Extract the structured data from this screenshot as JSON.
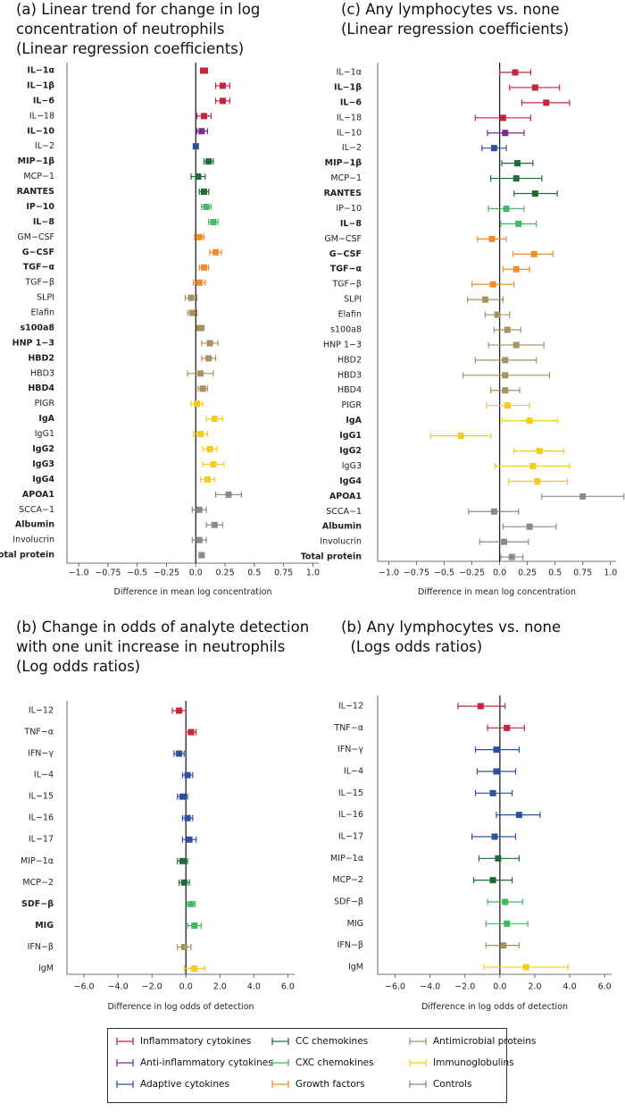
{
  "colors": {
    "inflammatory": "#c8223e",
    "anti_inflammatory": "#7b2d8e",
    "adaptive": "#2f4fa0",
    "cc": "#1f6b3a",
    "cxc": "#3dbb5e",
    "growth": "#f28c28",
    "antimicrobial": "#a89060",
    "immunoglobulin": "#f5cc1a",
    "controls": "#8a8a8a"
  },
  "legend": [
    {
      "label": "Inflammatory cytokines",
      "group": "inflammatory"
    },
    {
      "label": "CC chemokines",
      "group": "cc"
    },
    {
      "label": "Antimicrobial proteins",
      "group": "antimicrobial"
    },
    {
      "label": "Anti-inflammatory cytokines",
      "group": "anti_inflammatory"
    },
    {
      "label": "CXC chemokines",
      "group": "cxc"
    },
    {
      "label": "Immunoglobulins",
      "group": "immunoglobulin"
    },
    {
      "label": "Adaptive cytokines",
      "group": "adaptive"
    },
    {
      "label": "Growth factors",
      "group": "growth"
    },
    {
      "label": "Controls",
      "group": "controls"
    }
  ],
  "chart_data": [
    {
      "id": "a",
      "type": "forest",
      "title_lines": [
        "(a) Linear trend for change in log",
        "concentration of neutrophils",
        "(Linear regression coefficients)"
      ],
      "xlabel": "Difference in mean log concentration",
      "xlim": [
        -1.1,
        1.05
      ],
      "ticks": [
        -1.0,
        -0.75,
        -0.5,
        -0.25,
        0.0,
        0.25,
        0.5,
        0.75,
        1.0
      ],
      "tick_labels": [
        "−1.0",
        "−0.75",
        "−0.5",
        "−0.25",
        "0.0",
        "0.25",
        "0.5",
        "0.75",
        "1.0"
      ],
      "rows": [
        {
          "label": "IL−1α",
          "bold": true,
          "group": "inflammatory",
          "est": 0.07,
          "lo": 0.04,
          "hi": 0.1
        },
        {
          "label": "IL−1β",
          "bold": true,
          "group": "inflammatory",
          "est": 0.23,
          "lo": 0.17,
          "hi": 0.29
        },
        {
          "label": "IL−6",
          "bold": true,
          "group": "inflammatory",
          "est": 0.23,
          "lo": 0.17,
          "hi": 0.29
        },
        {
          "label": "IL−18",
          "bold": false,
          "group": "inflammatory",
          "est": 0.07,
          "lo": 0.01,
          "hi": 0.13
        },
        {
          "label": "IL−10",
          "bold": true,
          "group": "anti_inflammatory",
          "est": 0.05,
          "lo": 0.01,
          "hi": 0.1
        },
        {
          "label": "IL−2",
          "bold": false,
          "group": "adaptive",
          "est": 0.0,
          "lo": -0.02,
          "hi": 0.02
        },
        {
          "label": "MIP−1β",
          "bold": true,
          "group": "cc",
          "est": 0.11,
          "lo": 0.07,
          "hi": 0.15
        },
        {
          "label": "MCP−1",
          "bold": false,
          "group": "cc",
          "est": 0.02,
          "lo": -0.04,
          "hi": 0.08
        },
        {
          "label": "RANTES",
          "bold": true,
          "group": "cc",
          "est": 0.07,
          "lo": 0.03,
          "hi": 0.11
        },
        {
          "label": "IP−10",
          "bold": true,
          "group": "cxc",
          "est": 0.09,
          "lo": 0.05,
          "hi": 0.13
        },
        {
          "label": "IL−8",
          "bold": true,
          "group": "cxc",
          "est": 0.15,
          "lo": 0.11,
          "hi": 0.19
        },
        {
          "label": "GM−CSF",
          "bold": false,
          "group": "growth",
          "est": 0.03,
          "lo": -0.01,
          "hi": 0.07
        },
        {
          "label": "G−CSF",
          "bold": true,
          "group": "growth",
          "est": 0.17,
          "lo": 0.12,
          "hi": 0.22
        },
        {
          "label": "TGF−α",
          "bold": true,
          "group": "growth",
          "est": 0.07,
          "lo": 0.03,
          "hi": 0.11
        },
        {
          "label": "TGF−β",
          "bold": false,
          "group": "growth",
          "est": 0.03,
          "lo": -0.02,
          "hi": 0.08
        },
        {
          "label": "SLPI",
          "bold": false,
          "group": "antimicrobial",
          "est": -0.04,
          "lo": -0.09,
          "hi": 0.01
        },
        {
          "label": "Elafin",
          "bold": false,
          "group": "antimicrobial",
          "est": -0.03,
          "lo": -0.07,
          "hi": 0.01
        },
        {
          "label": "s100a8",
          "bold": true,
          "group": "antimicrobial",
          "est": 0.04,
          "lo": 0.01,
          "hi": 0.07
        },
        {
          "label": "HNP 1−3",
          "bold": true,
          "group": "antimicrobial",
          "est": 0.12,
          "lo": 0.05,
          "hi": 0.19
        },
        {
          "label": "HBD2",
          "bold": true,
          "group": "antimicrobial",
          "est": 0.11,
          "lo": 0.05,
          "hi": 0.17
        },
        {
          "label": "HBD3",
          "bold": false,
          "group": "antimicrobial",
          "est": 0.04,
          "lo": -0.07,
          "hi": 0.15
        },
        {
          "label": "HBD4",
          "bold": true,
          "group": "antimicrobial",
          "est": 0.06,
          "lo": 0.02,
          "hi": 0.1
        },
        {
          "label": "PIGR",
          "bold": false,
          "group": "immunoglobulin",
          "est": 0.01,
          "lo": -0.04,
          "hi": 0.06
        },
        {
          "label": "IgA",
          "bold": true,
          "group": "immunoglobulin",
          "est": 0.16,
          "lo": 0.09,
          "hi": 0.23
        },
        {
          "label": "IgG1",
          "bold": false,
          "group": "immunoglobulin",
          "est": 0.04,
          "lo": -0.02,
          "hi": 0.1
        },
        {
          "label": "IgG2",
          "bold": true,
          "group": "immunoglobulin",
          "est": 0.12,
          "lo": 0.06,
          "hi": 0.18
        },
        {
          "label": "IgG3",
          "bold": true,
          "group": "immunoglobulin",
          "est": 0.15,
          "lo": 0.06,
          "hi": 0.24
        },
        {
          "label": "IgG4",
          "bold": true,
          "group": "immunoglobulin",
          "est": 0.1,
          "lo": 0.04,
          "hi": 0.16
        },
        {
          "label": "APOA1",
          "bold": true,
          "group": "controls",
          "est": 0.28,
          "lo": 0.17,
          "hi": 0.39
        },
        {
          "label": "SCCA−1",
          "bold": false,
          "group": "controls",
          "est": 0.03,
          "lo": -0.03,
          "hi": 0.09
        },
        {
          "label": "Albumin",
          "bold": true,
          "group": "controls",
          "est": 0.16,
          "lo": 0.09,
          "hi": 0.23
        },
        {
          "label": "Involucrin",
          "bold": false,
          "group": "controls",
          "est": 0.03,
          "lo": -0.03,
          "hi": 0.09
        },
        {
          "label": "Total protein",
          "bold": true,
          "group": "controls",
          "est": 0.05,
          "lo": 0.03,
          "hi": 0.07
        }
      ]
    },
    {
      "id": "c",
      "type": "forest",
      "title_lines": [
        "(c) Any lymphocytes vs. none",
        "(Linear regression coefficients)"
      ],
      "xlabel": "Difference in mean log concentration",
      "xlim": [
        -1.1,
        1.05
      ],
      "ticks": [
        -1.0,
        -0.75,
        -0.5,
        -0.25,
        0.0,
        0.25,
        0.5,
        0.75,
        1.0
      ],
      "tick_labels": [
        "−1.0",
        "−0.75",
        "−0.5",
        "−0.25",
        "0.0",
        "0.25",
        "0.5",
        "0.75",
        "1.0"
      ],
      "rows": [
        {
          "label": "IL−1α",
          "bold": false,
          "group": "inflammatory",
          "est": 0.14,
          "lo": 0.0,
          "hi": 0.28
        },
        {
          "label": "IL−1β",
          "bold": true,
          "group": "inflammatory",
          "est": 0.32,
          "lo": 0.09,
          "hi": 0.54
        },
        {
          "label": "IL−6",
          "bold": true,
          "group": "inflammatory",
          "est": 0.42,
          "lo": 0.2,
          "hi": 0.63
        },
        {
          "label": "IL−18",
          "bold": false,
          "group": "inflammatory",
          "est": 0.03,
          "lo": -0.22,
          "hi": 0.28
        },
        {
          "label": "IL−10",
          "bold": false,
          "group": "anti_inflammatory",
          "est": 0.05,
          "lo": -0.11,
          "hi": 0.22
        },
        {
          "label": "IL−2",
          "bold": false,
          "group": "adaptive",
          "est": -0.05,
          "lo": -0.16,
          "hi": 0.06
        },
        {
          "label": "MIP−1β",
          "bold": true,
          "group": "cc",
          "est": 0.16,
          "lo": 0.02,
          "hi": 0.3
        },
        {
          "label": "MCP−1",
          "bold": false,
          "group": "cc",
          "est": 0.15,
          "lo": -0.08,
          "hi": 0.38
        },
        {
          "label": "RANTES",
          "bold": true,
          "group": "cc",
          "est": 0.32,
          "lo": 0.13,
          "hi": 0.52
        },
        {
          "label": "IP−10",
          "bold": false,
          "group": "cxc",
          "est": 0.06,
          "lo": -0.1,
          "hi": 0.22
        },
        {
          "label": "IL−8",
          "bold": true,
          "group": "cxc",
          "est": 0.17,
          "lo": 0.01,
          "hi": 0.33
        },
        {
          "label": "GM−CSF",
          "bold": false,
          "group": "growth",
          "est": -0.07,
          "lo": -0.2,
          "hi": 0.06
        },
        {
          "label": "G−CSF",
          "bold": true,
          "group": "growth",
          "est": 0.31,
          "lo": 0.12,
          "hi": 0.48
        },
        {
          "label": "TGF−α",
          "bold": true,
          "group": "growth",
          "est": 0.15,
          "lo": 0.03,
          "hi": 0.27
        },
        {
          "label": "TGF−β",
          "bold": false,
          "group": "growth",
          "est": -0.06,
          "lo": -0.25,
          "hi": 0.13
        },
        {
          "label": "SLPI",
          "bold": false,
          "group": "antimicrobial",
          "est": -0.13,
          "lo": -0.29,
          "hi": 0.03
        },
        {
          "label": "Elafin",
          "bold": false,
          "group": "antimicrobial",
          "est": -0.02,
          "lo": -0.13,
          "hi": 0.09
        },
        {
          "label": "s100a8",
          "bold": false,
          "group": "antimicrobial",
          "est": 0.07,
          "lo": -0.05,
          "hi": 0.19
        },
        {
          "label": "HNP 1−3",
          "bold": false,
          "group": "antimicrobial",
          "est": 0.15,
          "lo": -0.1,
          "hi": 0.4
        },
        {
          "label": "HBD2",
          "bold": false,
          "group": "antimicrobial",
          "est": 0.05,
          "lo": -0.22,
          "hi": 0.33
        },
        {
          "label": "HBD3",
          "bold": false,
          "group": "antimicrobial",
          "est": 0.05,
          "lo": -0.33,
          "hi": 0.45
        },
        {
          "label": "HBD4",
          "bold": false,
          "group": "antimicrobial",
          "est": 0.05,
          "lo": -0.08,
          "hi": 0.18
        },
        {
          "label": "PIGR",
          "bold": false,
          "group": "immunoglobulin",
          "est": 0.07,
          "lo": -0.12,
          "hi": 0.27
        },
        {
          "label": "IgA",
          "bold": true,
          "group": "immunoglobulin",
          "est": 0.27,
          "lo": 0.02,
          "hi": 0.52
        },
        {
          "label": "IgG1",
          "bold": true,
          "group": "immunoglobulin",
          "est": -0.35,
          "lo": -0.62,
          "hi": -0.08
        },
        {
          "label": "IgG2",
          "bold": true,
          "group": "immunoglobulin",
          "est": 0.36,
          "lo": 0.13,
          "hi": 0.58
        },
        {
          "label": "IgG3",
          "bold": false,
          "group": "immunoglobulin",
          "est": 0.3,
          "lo": -0.04,
          "hi": 0.63
        },
        {
          "label": "IgG4",
          "bold": true,
          "group": "immunoglobulin",
          "est": 0.34,
          "lo": 0.08,
          "hi": 0.61
        },
        {
          "label": "APOA1",
          "bold": true,
          "group": "controls",
          "est": 0.75,
          "lo": 0.38,
          "hi": 1.12
        },
        {
          "label": "SCCA−1",
          "bold": false,
          "group": "controls",
          "est": -0.05,
          "lo": -0.28,
          "hi": 0.17
        },
        {
          "label": "Albumin",
          "bold": true,
          "group": "controls",
          "est": 0.27,
          "lo": 0.03,
          "hi": 0.51
        },
        {
          "label": "Involucrin",
          "bold": false,
          "group": "controls",
          "est": 0.04,
          "lo": -0.18,
          "hi": 0.26
        },
        {
          "label": "Total protein",
          "bold": true,
          "group": "controls",
          "est": 0.11,
          "lo": 0.01,
          "hi": 0.21
        }
      ]
    },
    {
      "id": "b-left",
      "type": "forest",
      "title_lines": [
        "(b) Change in odds of analyte detection",
        "with one unit increase in neutrophils",
        "(Log odds ratios)"
      ],
      "xlabel": "Difference in log odds of detection",
      "xlim": [
        -7.0,
        6.4
      ],
      "ticks": [
        -6.0,
        -4.0,
        -2.0,
        0.0,
        2.0,
        4.0,
        6.0
      ],
      "tick_labels": [
        "−6.0",
        "−4.0",
        "−2.0",
        "0.0",
        "2.0",
        "4.0",
        "6.0"
      ],
      "rows": [
        {
          "label": "IL−12",
          "bold": false,
          "group": "inflammatory",
          "est": -0.4,
          "lo": -0.8,
          "hi": 0.0
        },
        {
          "label": "TNF−α",
          "bold": false,
          "group": "inflammatory",
          "est": 0.3,
          "lo": 0.0,
          "hi": 0.6
        },
        {
          "label": "IFN−γ",
          "bold": false,
          "group": "adaptive",
          "est": -0.4,
          "lo": -0.7,
          "hi": -0.1
        },
        {
          "label": "IL−4",
          "bold": false,
          "group": "adaptive",
          "est": 0.1,
          "lo": -0.2,
          "hi": 0.4
        },
        {
          "label": "IL−15",
          "bold": false,
          "group": "adaptive",
          "est": -0.2,
          "lo": -0.5,
          "hi": 0.1
        },
        {
          "label": "IL−16",
          "bold": false,
          "group": "adaptive",
          "est": 0.1,
          "lo": -0.2,
          "hi": 0.4
        },
        {
          "label": "IL−17",
          "bold": false,
          "group": "adaptive",
          "est": 0.2,
          "lo": -0.2,
          "hi": 0.6
        },
        {
          "label": "MIP−1α",
          "bold": false,
          "group": "cc",
          "est": -0.2,
          "lo": -0.5,
          "hi": 0.1
        },
        {
          "label": "MCP−2",
          "bold": false,
          "group": "cc",
          "est": -0.1,
          "lo": -0.4,
          "hi": 0.2
        },
        {
          "label": "SDF−β",
          "bold": true,
          "group": "cxc",
          "est": 0.3,
          "lo": 0.05,
          "hi": 0.55
        },
        {
          "label": "MIG",
          "bold": true,
          "group": "cxc",
          "est": 0.5,
          "lo": 0.1,
          "hi": 0.9
        },
        {
          "label": "IFN−β",
          "bold": false,
          "group": "antimicrobial",
          "est": -0.1,
          "lo": -0.5,
          "hi": 0.3
        },
        {
          "label": "IgM",
          "bold": false,
          "group": "immunoglobulin",
          "est": 0.5,
          "lo": -0.1,
          "hi": 1.1
        }
      ]
    },
    {
      "id": "b-right",
      "type": "forest",
      "title_lines": [
        "(b) Any lymphocytes vs. none",
        "  (Logs odds ratios)"
      ],
      "xlabel": "Difference in log odds of detection",
      "xlim": [
        -7.0,
        6.4
      ],
      "ticks": [
        -6.0,
        -4.0,
        -2.0,
        0.0,
        2.0,
        4.0,
        6.0
      ],
      "tick_labels": [
        "−6.0",
        "−4.0",
        "−2.0",
        "0.0",
        "2.0",
        "4.0",
        "6.0"
      ],
      "rows": [
        {
          "label": "IL−12",
          "bold": false,
          "group": "inflammatory",
          "est": -1.1,
          "lo": -2.4,
          "hi": 0.3
        },
        {
          "label": "TNF−α",
          "bold": false,
          "group": "inflammatory",
          "est": 0.4,
          "lo": -0.7,
          "hi": 1.4
        },
        {
          "label": "IFN−γ",
          "bold": false,
          "group": "adaptive",
          "est": -0.2,
          "lo": -1.4,
          "hi": 1.1
        },
        {
          "label": "IL−4",
          "bold": false,
          "group": "adaptive",
          "est": -0.2,
          "lo": -1.3,
          "hi": 0.9
        },
        {
          "label": "IL−15",
          "bold": false,
          "group": "adaptive",
          "est": -0.4,
          "lo": -1.4,
          "hi": 0.7
        },
        {
          "label": "IL−16",
          "bold": false,
          "group": "adaptive",
          "est": 1.1,
          "lo": -0.2,
          "hi": 2.3
        },
        {
          "label": "IL−17",
          "bold": false,
          "group": "adaptive",
          "est": -0.3,
          "lo": -1.6,
          "hi": 0.9
        },
        {
          "label": "MIP−1α",
          "bold": false,
          "group": "cc",
          "est": -0.1,
          "lo": -1.2,
          "hi": 1.1
        },
        {
          "label": "MCP−2",
          "bold": false,
          "group": "cc",
          "est": -0.4,
          "lo": -1.5,
          "hi": 0.7
        },
        {
          "label": "SDF−β",
          "bold": false,
          "group": "cxc",
          "est": 0.3,
          "lo": -0.7,
          "hi": 1.3
        },
        {
          "label": "MIG",
          "bold": false,
          "group": "cxc",
          "est": 0.4,
          "lo": -0.8,
          "hi": 1.6
        },
        {
          "label": "IFN−β",
          "bold": false,
          "group": "antimicrobial",
          "est": 0.2,
          "lo": -0.8,
          "hi": 1.1
        },
        {
          "label": "IgM",
          "bold": false,
          "group": "immunoglobulin",
          "est": 1.5,
          "lo": -0.9,
          "hi": 3.9
        }
      ]
    }
  ]
}
